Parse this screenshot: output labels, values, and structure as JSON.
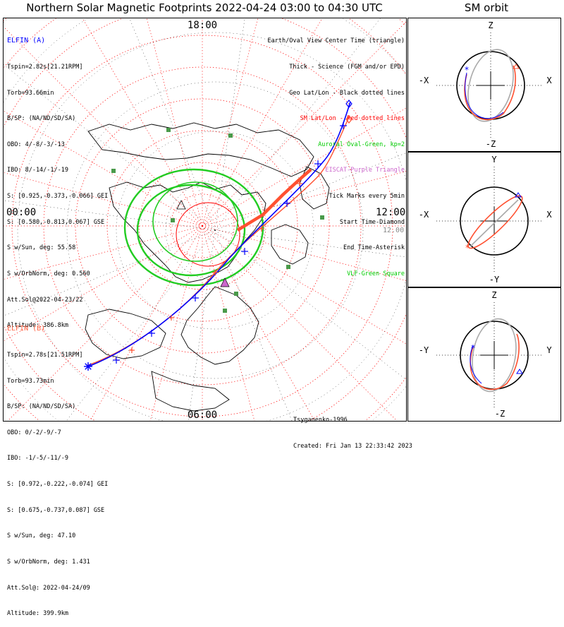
{
  "title": "Northern Solar Magnetic Footprints 2022-04-24 03:00 to 04:30 UTC",
  "orbit_title": "SM orbit",
  "clock_labels": {
    "top": "18:00",
    "left": "00:00",
    "right": "12:00",
    "bottom": "06:00",
    "right_partial": "12.00"
  },
  "elfin_a": {
    "name": "ELFIN (A)",
    "color": "#0000ff",
    "lines": [
      "Tspin=2.82s[21.21RPM]",
      "Torb=93.66min",
      "B/SP: (NA/ND/SD/SA)",
      "OBO: 4/-8/-3/-13",
      "IBO: 8/-14/-1/-19",
      "S: [0.925,-0.373,-0.066] GEI",
      "S: [0.580,-0.813,0.067] GSE",
      "S w/Sun, deg: 55.58",
      "S w/OrbNorm, deg: 0.560",
      "Att.Sol@2022-04-23/22",
      "Altitude: 386.8km"
    ]
  },
  "elfin_b": {
    "name": "ELFIN (B)",
    "color": "#ff6040",
    "lines": [
      "Tspin=2.78s[21.51RPM]",
      "Torb=93.73min",
      "B/SP: (NA/ND/SD/SA)",
      "OBO: 0/-2/-9/-7",
      "IBO: -1/-5/-11/-9",
      "S: [0.972,-0.222,-0.074] GEI",
      "S: [0.675,-0.737,0.087] GSE",
      "S w/Sun, deg: 47.10",
      "S w/OrbNorm, deg: 1.431",
      "Att.Sol@: 2022-04-24/09",
      "Altitude: 399.9km"
    ]
  },
  "legend": [
    {
      "text": "Earth/Oval View Center Time (triangle)",
      "color": "#000000"
    },
    {
      "text": "Thick - Science (FGM and/or EPD)",
      "color": "#000000"
    },
    {
      "text": "Geo Lat/Lon - Black dotted lines",
      "color": "#000000"
    },
    {
      "text": "SM Lat/Lon - Red dotted lines",
      "color": "#ff0000"
    },
    {
      "text": "Auroral Oval-Green, kp=2",
      "color": "#00cc00"
    },
    {
      "text": "EISCAT-Purple Triangle",
      "color": "#cc66cc"
    },
    {
      "text": "Tick Marks every 5min",
      "color": "#000000"
    },
    {
      "text": "Start Time-Diamond",
      "color": "#000000"
    },
    {
      "text": "End Time-Asterisk",
      "color": "#000000"
    },
    {
      "text": "VLF-Green Square",
      "color": "#00cc00"
    }
  ],
  "credits": {
    "author": "Tsyganenko-1996",
    "created": "Created: Fri Jan 13 22:33:42 2023"
  },
  "orbit_panels": [
    {
      "id": "xz",
      "top": "Z",
      "bottom": "-Z",
      "left": "-X",
      "right": "X"
    },
    {
      "id": "xy",
      "top": "Y",
      "bottom": "-Y",
      "left": "-X",
      "right": "X"
    },
    {
      "id": "yz",
      "top": "Z",
      "bottom": "-Z",
      "left": "-Y",
      "right": "Y"
    }
  ],
  "colors": {
    "elfin_a": "#0000ff",
    "elfin_b": "#ff5030",
    "sm_grid": "#ff0000",
    "geo_grid": "#000000",
    "oval": "#22cc22",
    "vlf": "#4a9a4a",
    "eiscat": "#cc66cc"
  },
  "chart_data": {
    "type": "map",
    "projection": "north polar stereographic, solar magnetic coordinates",
    "axis_labels": [
      "18:00",
      "00:00",
      "12:00",
      "06:00"
    ],
    "series": [
      {
        "name": "ELFIN (A)",
        "color": "#0000ff"
      },
      {
        "name": "ELFIN (B)",
        "color": "#ff5030"
      }
    ],
    "auroral_oval_kp": 2
  }
}
